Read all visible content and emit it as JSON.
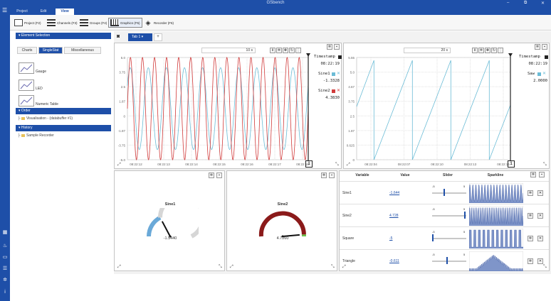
{
  "window": {
    "title": "GSbench",
    "min": "–",
    "max": "⧉",
    "close": "✕"
  },
  "menu": {
    "hamburger": "☰",
    "tabs": [
      "Project",
      "Edit",
      "View"
    ],
    "active": 2
  },
  "ribbon": [
    {
      "label": "Project (F2)",
      "icon": "project-icon"
    },
    {
      "label": "Channels (F3)",
      "icon": "channels-icon"
    },
    {
      "label": "Groups (F4)",
      "icon": "groups-icon"
    },
    {
      "label": "Graphics (F5)",
      "icon": "graphics-icon"
    },
    {
      "label": "Recorder (F6)",
      "icon": "recorder-icon"
    }
  ],
  "sidebar": {
    "element_selection": "Element Selection",
    "tabs": [
      "Charts",
      "SingleStat",
      "Miscellaneous"
    ],
    "active_tab": 1,
    "elements": [
      "Gauge",
      "LED",
      "Numeric Table"
    ],
    "order_title": "Order",
    "order_item": "Visualisation - (databuffer #1)",
    "history_title": "History",
    "history_item": "Sample Recorder"
  },
  "worksheet": {
    "tab": "Tab 1",
    "add": "+"
  },
  "chart_left": {
    "timespan": "10 s",
    "legend": [
      {
        "name": "Timestamp",
        "value": "08:22:19",
        "color": "#222222"
      },
      {
        "name": "Sine1",
        "value": "-1.3328",
        "color": "#6bbcd6"
      },
      {
        "name": "Sine2",
        "value": "4.3830",
        "color": "#d13b3b"
      }
    ],
    "cursor_label": "1"
  },
  "chart_right": {
    "timespan": "20 s",
    "legend": [
      {
        "name": "Timestamp",
        "value": "08:22:19",
        "color": "#222222"
      },
      {
        "name": "Saw",
        "value": "2.0000",
        "color": "#6bbcd6"
      }
    ],
    "cursor_label": "1"
  },
  "chart_data": [
    {
      "type": "line",
      "x": [
        "08:22:12",
        "08:22:13",
        "08:22:14",
        "08:22:15",
        "08:22:16",
        "08:22:17",
        "08:22:18"
      ],
      "yticks": [
        "5.0",
        "3.75",
        "2.5",
        "1.87",
        "0",
        "-1.87",
        "-3.75",
        "-5.0"
      ],
      "ylim": [
        -5,
        5
      ],
      "series": [
        {
          "name": "Sine1",
          "color": "#6bbcd6",
          "amplitude": 4,
          "cycles": 10,
          "phase": 0.6
        },
        {
          "name": "Sine2",
          "color": "#d13b3b",
          "amplitude": 5,
          "cycles": 15,
          "phase": 0.0
        }
      ]
    },
    {
      "type": "line",
      "x": [
        "08:22:04",
        "08:22:07",
        "08:22:10",
        "08:22:13",
        "08:22:16"
      ],
      "yticks": [
        "5.55",
        "5.0",
        "4.67",
        "3.75",
        "2.5",
        "1.87",
        "0.625",
        "0"
      ],
      "ylim": [
        0,
        5.55
      ],
      "series": [
        {
          "name": "Saw",
          "color": "#6bbcd6",
          "period_fraction": 0.25
        }
      ]
    }
  ],
  "gauges": [
    {
      "title": "Sine1",
      "value": "-1.5440",
      "value_num": -1.544,
      "min": -5,
      "max": 5,
      "colors": [
        "#6aa9d8",
        "#d6d6d6"
      ]
    },
    {
      "title": "Sine2",
      "value": "4.7260",
      "value_num": 4.726,
      "min": -5,
      "max": 5,
      "colors": [
        "#8b1a1a",
        "#6cc04a"
      ]
    }
  ],
  "table": {
    "headers": [
      "Variable",
      "Value",
      "Slider",
      "Sparkline"
    ],
    "slider_min": "-5",
    "slider_max": "5",
    "rows": [
      {
        "name": "Sine1",
        "value": "-1.644",
        "level": 0.34
      },
      {
        "name": "Sine2",
        "value": "4.728",
        "level": 0.97
      },
      {
        "name": "Square",
        "value": "-5",
        "level": 0.0
      },
      {
        "name": "Triangle",
        "value": "-0.611",
        "level": 0.44
      }
    ]
  }
}
